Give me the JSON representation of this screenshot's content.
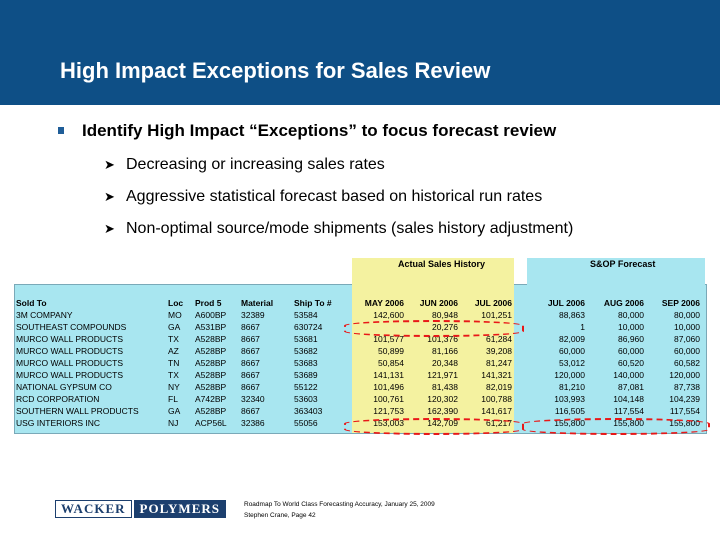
{
  "header": {
    "title": "High Impact Exceptions for Sales Review",
    "bg_color": "#0e4f86"
  },
  "bullets": {
    "main": "Identify High Impact “Exceptions” to focus forecast review",
    "subs": [
      "Decreasing or increasing sales rates",
      "Aggressive statistical forecast based on historical run rates",
      "Non-optimal source/mode shipments (sales history adjustment)"
    ]
  },
  "table": {
    "group_history": "Actual Sales History",
    "group_forecast": "S&OP Forecast",
    "headers": [
      "Sold To",
      "Loc",
      "Prod 5",
      "Material",
      "Ship To #",
      "MAY 2006",
      "JUN 2006",
      "JUL 2006",
      "JUL 2006",
      "AUG 2006",
      "SEP 2006"
    ],
    "rows": [
      [
        "3M COMPANY",
        "MO",
        "A600BP",
        "32389",
        "53584",
        "142,600",
        "80,948",
        "101,251",
        "88,863",
        "80,000",
        "80,000"
      ],
      [
        "SOUTHEAST COMPOUNDS",
        "GA",
        "A531BP",
        "8667",
        "630724",
        "",
        "20,276",
        "",
        "1",
        "10,000",
        "10,000"
      ],
      [
        "MURCO WALL PRODUCTS",
        "TX",
        "A528BP",
        "8667",
        "53681",
        "101,577",
        "101,376",
        "61,284",
        "82,009",
        "86,960",
        "87,060"
      ],
      [
        "MURCO WALL PRODUCTS",
        "AZ",
        "A528BP",
        "8667",
        "53682",
        "50,899",
        "81,166",
        "39,208",
        "60,000",
        "60,000",
        "60,000"
      ],
      [
        "MURCO WALL PRODUCTS",
        "TN",
        "A528BP",
        "8667",
        "53683",
        "50,854",
        "20,348",
        "81,247",
        "53,012",
        "60,520",
        "60,582"
      ],
      [
        "MURCO WALL PRODUCTS",
        "TX",
        "A528BP",
        "8667",
        "53689",
        "141,131",
        "121,971",
        "141,321",
        "120,000",
        "140,000",
        "120,000"
      ],
      [
        "NATIONAL GYPSUM CO",
        "NY",
        "A528BP",
        "8667",
        "55122",
        "101,496",
        "81,438",
        "82,019",
        "81,210",
        "87,081",
        "87,738"
      ],
      [
        "RCD CORPORATION",
        "FL",
        "A742BP",
        "32340",
        "53603",
        "100,761",
        "120,302",
        "100,788",
        "103,993",
        "104,148",
        "104,239"
      ],
      [
        "SOUTHERN WALL PRODUCTS",
        "GA",
        "A528BP",
        "8667",
        "363403",
        "121,753",
        "162,390",
        "141,617",
        "116,505",
        "117,554",
        "117,554"
      ],
      [
        "USG INTERIORS INC",
        "NJ",
        "ACP56L",
        "32386",
        "55056",
        "153,003",
        "142,709",
        "61,217",
        "155,800",
        "155,800",
        "155,800"
      ]
    ]
  },
  "footer": {
    "logo_left": "WACKER",
    "logo_right": "POLYMERS",
    "line1": "Roadmap To World Class Forecasting Accuracy, January 25, 2009",
    "line2": "Stephen Crane, Page 42"
  }
}
